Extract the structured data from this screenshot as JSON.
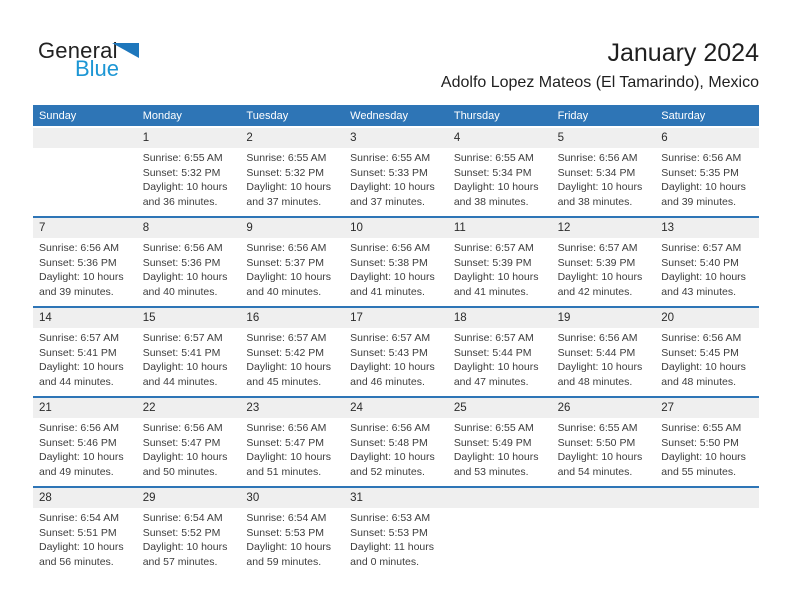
{
  "colors": {
    "header_bar": "#2e75b6",
    "week_separator": "#2e75b6",
    "day_number_band": "#efefef",
    "body_text": "#3d3d3d",
    "weekday_text": "#ffffff",
    "logo_blue_text": "#1c96d4",
    "logo_triangle": "#1e77bc"
  },
  "logo": {
    "word_top": "General",
    "word_bottom": "Blue",
    "triangle_icon": "blue-right-triangle"
  },
  "header": {
    "title": "January 2024",
    "subtitle": "Adolfo Lopez Mateos (El Tamarindo), Mexico"
  },
  "weekday_headers": [
    "Sunday",
    "Monday",
    "Tuesday",
    "Wednesday",
    "Thursday",
    "Friday",
    "Saturday"
  ],
  "weeks": [
    [
      {
        "day": "",
        "sunrise": "",
        "sunset": "",
        "daylight_line1": "",
        "daylight_line2": ""
      },
      {
        "day": "1",
        "sunrise": "Sunrise: 6:55 AM",
        "sunset": "Sunset: 5:32 PM",
        "daylight_line1": "Daylight: 10 hours",
        "daylight_line2": "and 36 minutes."
      },
      {
        "day": "2",
        "sunrise": "Sunrise: 6:55 AM",
        "sunset": "Sunset: 5:32 PM",
        "daylight_line1": "Daylight: 10 hours",
        "daylight_line2": "and 37 minutes."
      },
      {
        "day": "3",
        "sunrise": "Sunrise: 6:55 AM",
        "sunset": "Sunset: 5:33 PM",
        "daylight_line1": "Daylight: 10 hours",
        "daylight_line2": "and 37 minutes."
      },
      {
        "day": "4",
        "sunrise": "Sunrise: 6:55 AM",
        "sunset": "Sunset: 5:34 PM",
        "daylight_line1": "Daylight: 10 hours",
        "daylight_line2": "and 38 minutes."
      },
      {
        "day": "5",
        "sunrise": "Sunrise: 6:56 AM",
        "sunset": "Sunset: 5:34 PM",
        "daylight_line1": "Daylight: 10 hours",
        "daylight_line2": "and 38 minutes."
      },
      {
        "day": "6",
        "sunrise": "Sunrise: 6:56 AM",
        "sunset": "Sunset: 5:35 PM",
        "daylight_line1": "Daylight: 10 hours",
        "daylight_line2": "and 39 minutes."
      }
    ],
    [
      {
        "day": "7",
        "sunrise": "Sunrise: 6:56 AM",
        "sunset": "Sunset: 5:36 PM",
        "daylight_line1": "Daylight: 10 hours",
        "daylight_line2": "and 39 minutes."
      },
      {
        "day": "8",
        "sunrise": "Sunrise: 6:56 AM",
        "sunset": "Sunset: 5:36 PM",
        "daylight_line1": "Daylight: 10 hours",
        "daylight_line2": "and 40 minutes."
      },
      {
        "day": "9",
        "sunrise": "Sunrise: 6:56 AM",
        "sunset": "Sunset: 5:37 PM",
        "daylight_line1": "Daylight: 10 hours",
        "daylight_line2": "and 40 minutes."
      },
      {
        "day": "10",
        "sunrise": "Sunrise: 6:56 AM",
        "sunset": "Sunset: 5:38 PM",
        "daylight_line1": "Daylight: 10 hours",
        "daylight_line2": "and 41 minutes."
      },
      {
        "day": "11",
        "sunrise": "Sunrise: 6:57 AM",
        "sunset": "Sunset: 5:39 PM",
        "daylight_line1": "Daylight: 10 hours",
        "daylight_line2": "and 41 minutes."
      },
      {
        "day": "12",
        "sunrise": "Sunrise: 6:57 AM",
        "sunset": "Sunset: 5:39 PM",
        "daylight_line1": "Daylight: 10 hours",
        "daylight_line2": "and 42 minutes."
      },
      {
        "day": "13",
        "sunrise": "Sunrise: 6:57 AM",
        "sunset": "Sunset: 5:40 PM",
        "daylight_line1": "Daylight: 10 hours",
        "daylight_line2": "and 43 minutes."
      }
    ],
    [
      {
        "day": "14",
        "sunrise": "Sunrise: 6:57 AM",
        "sunset": "Sunset: 5:41 PM",
        "daylight_line1": "Daylight: 10 hours",
        "daylight_line2": "and 44 minutes."
      },
      {
        "day": "15",
        "sunrise": "Sunrise: 6:57 AM",
        "sunset": "Sunset: 5:41 PM",
        "daylight_line1": "Daylight: 10 hours",
        "daylight_line2": "and 44 minutes."
      },
      {
        "day": "16",
        "sunrise": "Sunrise: 6:57 AM",
        "sunset": "Sunset: 5:42 PM",
        "daylight_line1": "Daylight: 10 hours",
        "daylight_line2": "and 45 minutes."
      },
      {
        "day": "17",
        "sunrise": "Sunrise: 6:57 AM",
        "sunset": "Sunset: 5:43 PM",
        "daylight_line1": "Daylight: 10 hours",
        "daylight_line2": "and 46 minutes."
      },
      {
        "day": "18",
        "sunrise": "Sunrise: 6:57 AM",
        "sunset": "Sunset: 5:44 PM",
        "daylight_line1": "Daylight: 10 hours",
        "daylight_line2": "and 47 minutes."
      },
      {
        "day": "19",
        "sunrise": "Sunrise: 6:56 AM",
        "sunset": "Sunset: 5:44 PM",
        "daylight_line1": "Daylight: 10 hours",
        "daylight_line2": "and 48 minutes."
      },
      {
        "day": "20",
        "sunrise": "Sunrise: 6:56 AM",
        "sunset": "Sunset: 5:45 PM",
        "daylight_line1": "Daylight: 10 hours",
        "daylight_line2": "and 48 minutes."
      }
    ],
    [
      {
        "day": "21",
        "sunrise": "Sunrise: 6:56 AM",
        "sunset": "Sunset: 5:46 PM",
        "daylight_line1": "Daylight: 10 hours",
        "daylight_line2": "and 49 minutes."
      },
      {
        "day": "22",
        "sunrise": "Sunrise: 6:56 AM",
        "sunset": "Sunset: 5:47 PM",
        "daylight_line1": "Daylight: 10 hours",
        "daylight_line2": "and 50 minutes."
      },
      {
        "day": "23",
        "sunrise": "Sunrise: 6:56 AM",
        "sunset": "Sunset: 5:47 PM",
        "daylight_line1": "Daylight: 10 hours",
        "daylight_line2": "and 51 minutes."
      },
      {
        "day": "24",
        "sunrise": "Sunrise: 6:56 AM",
        "sunset": "Sunset: 5:48 PM",
        "daylight_line1": "Daylight: 10 hours",
        "daylight_line2": "and 52 minutes."
      },
      {
        "day": "25",
        "sunrise": "Sunrise: 6:55 AM",
        "sunset": "Sunset: 5:49 PM",
        "daylight_line1": "Daylight: 10 hours",
        "daylight_line2": "and 53 minutes."
      },
      {
        "day": "26",
        "sunrise": "Sunrise: 6:55 AM",
        "sunset": "Sunset: 5:50 PM",
        "daylight_line1": "Daylight: 10 hours",
        "daylight_line2": "and 54 minutes."
      },
      {
        "day": "27",
        "sunrise": "Sunrise: 6:55 AM",
        "sunset": "Sunset: 5:50 PM",
        "daylight_line1": "Daylight: 10 hours",
        "daylight_line2": "and 55 minutes."
      }
    ],
    [
      {
        "day": "28",
        "sunrise": "Sunrise: 6:54 AM",
        "sunset": "Sunset: 5:51 PM",
        "daylight_line1": "Daylight: 10 hours",
        "daylight_line2": "and 56 minutes."
      },
      {
        "day": "29",
        "sunrise": "Sunrise: 6:54 AM",
        "sunset": "Sunset: 5:52 PM",
        "daylight_line1": "Daylight: 10 hours",
        "daylight_line2": "and 57 minutes."
      },
      {
        "day": "30",
        "sunrise": "Sunrise: 6:54 AM",
        "sunset": "Sunset: 5:53 PM",
        "daylight_line1": "Daylight: 10 hours",
        "daylight_line2": "and 59 minutes."
      },
      {
        "day": "31",
        "sunrise": "Sunrise: 6:53 AM",
        "sunset": "Sunset: 5:53 PM",
        "daylight_line1": "Daylight: 11 hours",
        "daylight_line2": "and 0 minutes."
      },
      {
        "day": "",
        "sunrise": "",
        "sunset": "",
        "daylight_line1": "",
        "daylight_line2": ""
      },
      {
        "day": "",
        "sunrise": "",
        "sunset": "",
        "daylight_line1": "",
        "daylight_line2": ""
      },
      {
        "day": "",
        "sunrise": "",
        "sunset": "",
        "daylight_line1": "",
        "daylight_line2": ""
      }
    ]
  ]
}
